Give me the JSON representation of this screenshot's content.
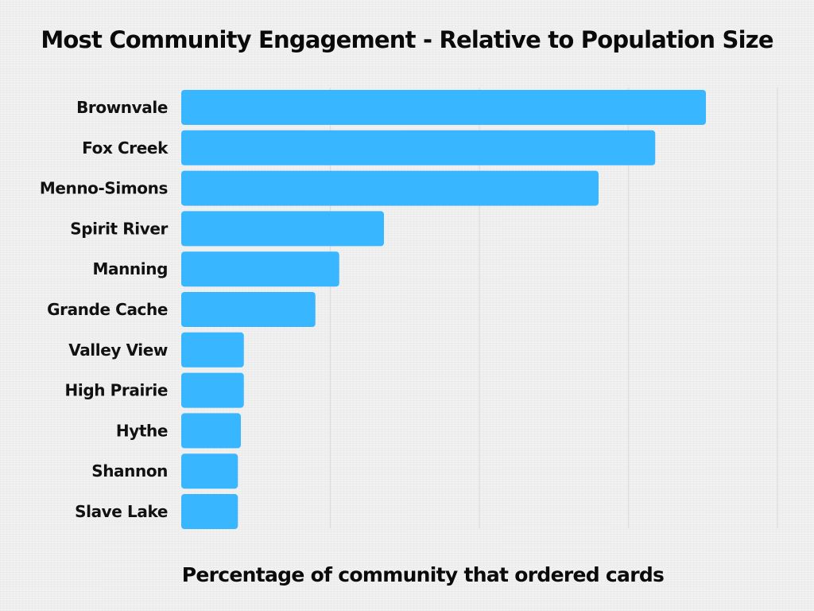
{
  "chart_data": {
    "type": "bar",
    "orientation": "horizontal",
    "title": "Most Community Engagement - Relative to Population Size",
    "xlabel": "Percentage of community that ordered cards",
    "ylabel": "",
    "categories": [
      "Brownvale",
      "Fox Creek",
      "Menno-Simons",
      "Spirit River",
      "Manning",
      "Grande Cache",
      "Valley View",
      "High Prairie",
      "Hythe",
      "Shannon",
      "Slave Lake"
    ],
    "values": [
      17.6,
      15.9,
      14.0,
      6.8,
      5.3,
      4.5,
      2.1,
      2.1,
      2.0,
      1.9,
      1.9
    ],
    "xlim": [
      0,
      20
    ],
    "gridlines_at": [
      5,
      10,
      15,
      20
    ],
    "grid": true,
    "bar_color": "#38b6ff",
    "gridline_color": "#dddddd"
  }
}
